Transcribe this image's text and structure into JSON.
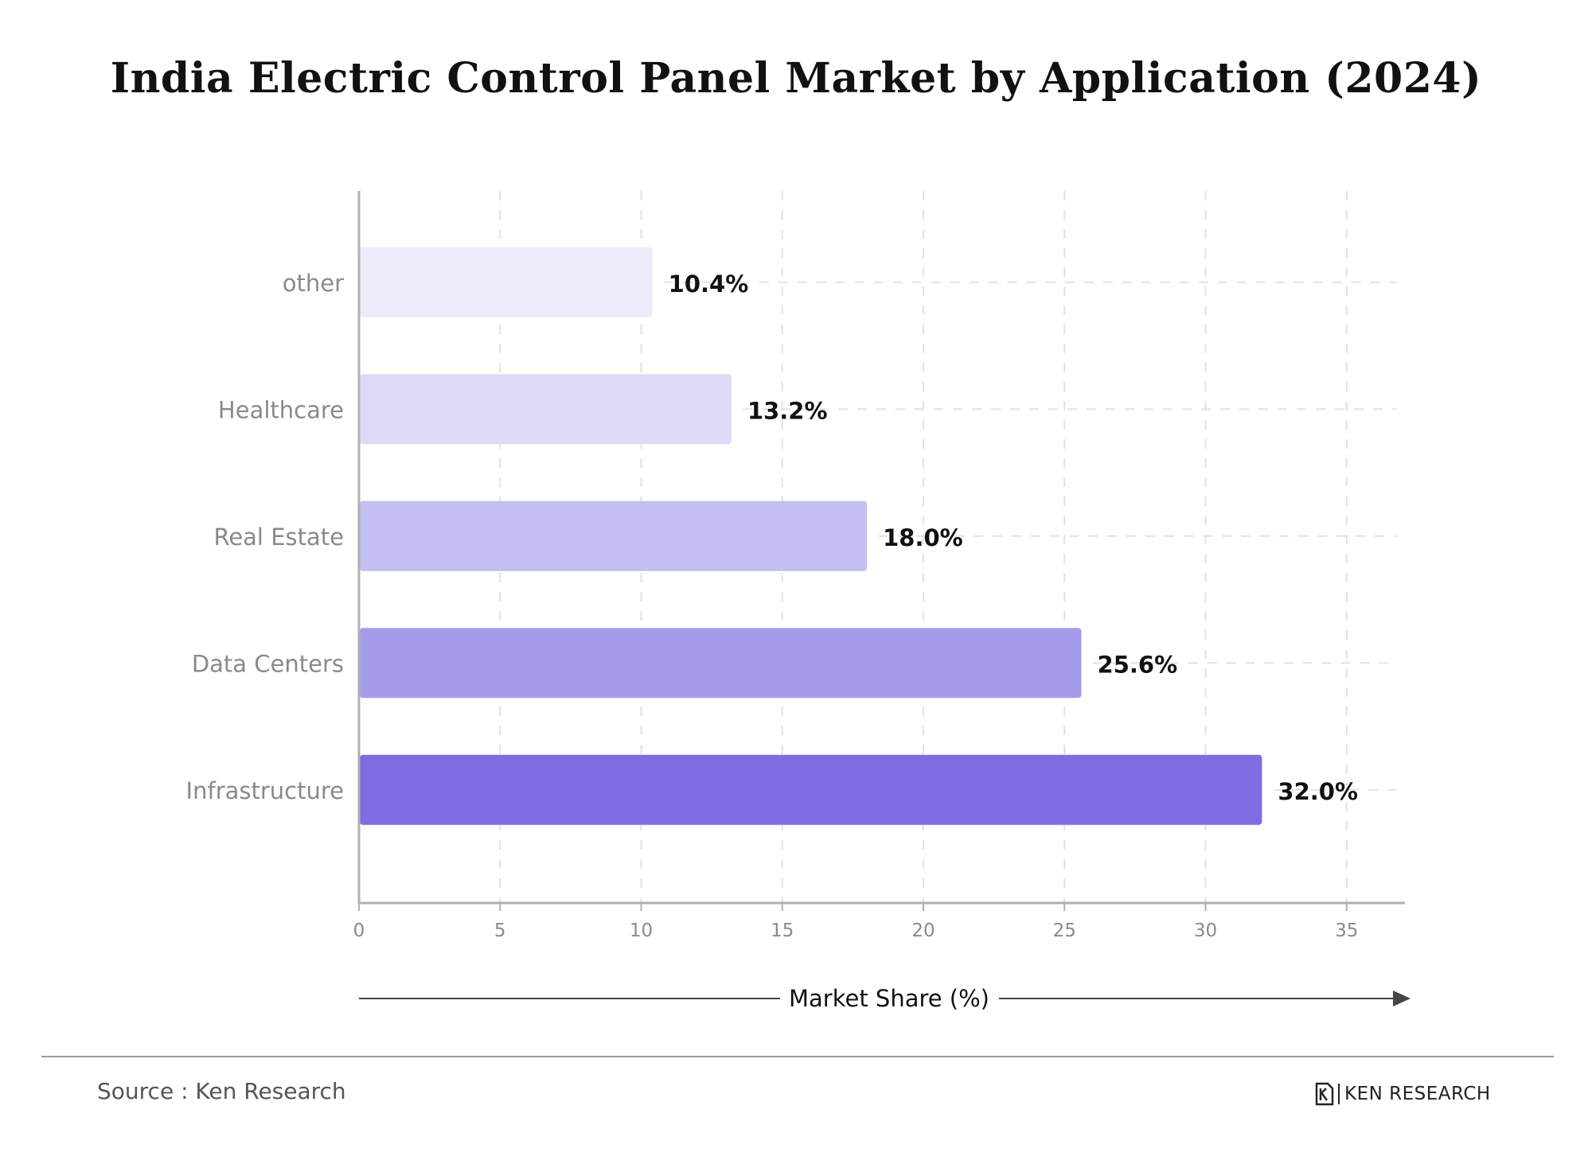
{
  "title": "India Electric Control Panel Market by Application (2024)",
  "source": "Source : Ken Research",
  "brand": {
    "logo_icon": "ken-research-logo-icon",
    "name": "KEN RESEARCH"
  },
  "colors": {
    "bars": [
      "#ecebfa",
      "#dcdaf7",
      "#c3bff2",
      "#a49ceb",
      "#7f6ce0"
    ],
    "grid": "#e2e2e2",
    "axis": "#b0b0b0"
  },
  "chart_data": {
    "type": "bar",
    "orientation": "horizontal",
    "title": "India Electric Control Panel Market by Application (2024)",
    "categories": [
      "other",
      "Healthcare",
      "Real Estate",
      "Data Centers",
      "Infrastructure"
    ],
    "values": [
      10.4,
      13.2,
      18.0,
      25.6,
      32.0
    ],
    "data_labels": [
      "10.4%",
      "13.2%",
      "18.0%",
      "25.6%",
      "32.0%"
    ],
    "xlabel": "Market Share (%)",
    "ylabel": "",
    "xlim": [
      0,
      37
    ],
    "xticks": [
      0,
      5,
      10,
      15,
      20,
      25,
      30,
      35
    ],
    "grid": true,
    "legend": "none"
  }
}
